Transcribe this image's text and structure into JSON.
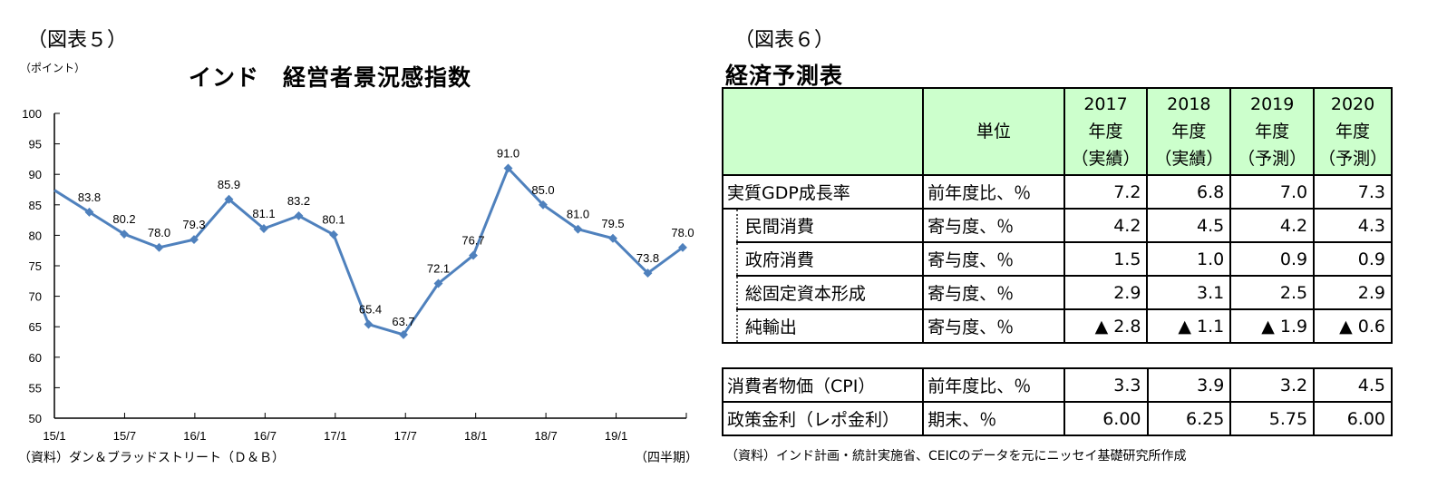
{
  "left_figure": {
    "figure_label": "（図表５）",
    "unit_label": "（ポイント）",
    "title": "インド　経営者景況感指数",
    "source": "（資料）ダン＆ブラッドストリート（Ｄ＆Ｂ）",
    "x_axis_note": "（四半期）"
  },
  "chart_data": {
    "type": "line",
    "title": "インド　経営者景況感指数",
    "xlabel": "（四半期）",
    "ylabel": "（ポイント）",
    "ylim": [
      50,
      100
    ],
    "yticks": [
      50,
      55,
      60,
      65,
      70,
      75,
      80,
      85,
      90,
      95,
      100
    ],
    "x": [
      "15/1",
      "15/4",
      "15/7",
      "15/10",
      "16/1",
      "16/4",
      "16/7",
      "16/10",
      "17/1",
      "17/4",
      "17/7",
      "17/10",
      "18/1",
      "18/4",
      "18/7",
      "18/10",
      "19/1",
      "19/4",
      "19/7"
    ],
    "xtick_labels": [
      "15/1",
      "15/7",
      "16/1",
      "16/7",
      "17/1",
      "17/7",
      "18/1",
      "18/7",
      "19/1"
    ],
    "series": [
      {
        "name": "経営者景況感指数",
        "color": "#4f81bd",
        "values": [
          87.4,
          83.8,
          80.2,
          78.0,
          79.3,
          85.9,
          81.1,
          83.2,
          80.1,
          65.4,
          63.7,
          72.1,
          76.7,
          91.0,
          85.0,
          81.0,
          79.5,
          73.8,
          78.0
        ],
        "data_labels": [
          "",
          "83.8",
          "80.2",
          "78.0",
          "79.3",
          "85.9",
          "81.1",
          "83.2",
          "80.1",
          "65.4",
          "63.7",
          "72.1",
          "76.7",
          "91.0",
          "85.0",
          "81.0",
          "79.5",
          "73.8",
          "78.0"
        ]
      }
    ],
    "grid": false,
    "legend": "none"
  },
  "right_figure": {
    "figure_label": "（図表６）",
    "title": "経済予測表",
    "header": {
      "unit": "単位",
      "years": [
        {
          "year": "2017",
          "suffix": "年度",
          "kind": "（実績）"
        },
        {
          "year": "2018",
          "suffix": "年度",
          "kind": "（実績）"
        },
        {
          "year": "2019",
          "suffix": "年度",
          "kind": "（予測）"
        },
        {
          "year": "2020",
          "suffix": "年度",
          "kind": "（予測）"
        }
      ]
    },
    "rows": [
      {
        "label": "実質GDP成長率",
        "unit": "前年度比、％",
        "values": [
          "7.2",
          "6.8",
          "7.0",
          "7.3"
        ]
      },
      {
        "label": "民間消費",
        "unit": "寄与度、％",
        "values": [
          "4.2",
          "4.5",
          "4.2",
          "4.3"
        ]
      },
      {
        "label": "政府消費",
        "unit": "寄与度、％",
        "values": [
          "1.5",
          "1.0",
          "0.9",
          "0.9"
        ]
      },
      {
        "label": "総固定資本形成",
        "unit": "寄与度、％",
        "values": [
          "2.9",
          "3.1",
          "2.5",
          "2.9"
        ]
      },
      {
        "label": "純輸出",
        "unit": "寄与度、％",
        "values": [
          "▲ 2.8",
          "▲ 1.1",
          "▲ 1.9",
          "▲ 0.6"
        ]
      }
    ],
    "rows2": [
      {
        "label": "消費者物価（CPI）",
        "unit": "前年度比、％",
        "values": [
          "3.3",
          "3.9",
          "3.2",
          "4.5"
        ]
      },
      {
        "label": "政策金利（レポ金利）",
        "unit": "期末、％",
        "values": [
          "6.00",
          "6.25",
          "5.75",
          "6.00"
        ]
      }
    ],
    "source": "（資料）インド計画・統計実施省、CEICのデータを元にニッセイ基礎研究所作成"
  }
}
